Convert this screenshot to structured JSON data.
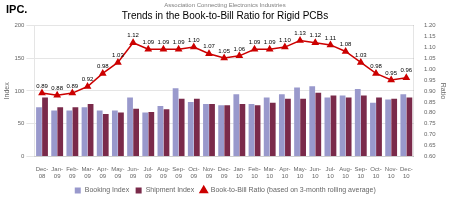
{
  "chart_data": {
    "type": "bar",
    "title": "Trends in the Book-to-Bill Ratio for Rigid PCBs",
    "subtitle": "Association Connecting Electronics Industries",
    "annotations": [
      {
        "text": "IPC."
      }
    ],
    "ylabel": "Index",
    "y2label": "Ratio",
    "categories": [
      "Dec-\n08",
      "Jan-\n09",
      "Feb-\n09",
      "Mar-\n09",
      "Apr-\n09",
      "May-\n09",
      "Jun-\n09",
      "Jul-\n09",
      "Aug-\n09",
      "Sep-\n09",
      "Oct-\n09",
      "Nov-\n09",
      "Dec-\n09",
      "Jan-\n10",
      "Feb-\n10",
      "Mar-\n10",
      "Apr-\n10",
      "May-\n10",
      "Jun-\n10",
      "Jul-\n10",
      "Aug-\n10",
      "Sep-\n10",
      "Oct-\n10",
      "Nov-\n10",
      "Dec-\n10"
    ],
    "series": [
      {
        "name": "Booking Index",
        "type": "bar",
        "color": "#9999cc",
        "values": [
          75,
          70,
          70,
          75,
          70,
          70,
          90,
          67,
          77,
          104,
          83,
          80,
          78,
          95,
          80,
          90,
          95,
          105,
          107,
          90,
          93,
          103,
          82,
          87,
          95
        ]
      },
      {
        "name": "Shipment Index",
        "type": "bar",
        "color": "#7a2a4a",
        "values": [
          90,
          75,
          75,
          80,
          65,
          67,
          73,
          68,
          72,
          88,
          88,
          80,
          78,
          80,
          78,
          82,
          88,
          88,
          97,
          93,
          90,
          93,
          90,
          88,
          90
        ]
      },
      {
        "name": "Book-to-Bill Ratio (based on 3-month rolling average)",
        "type": "line",
        "axis": "y2",
        "color": "#cc0000",
        "marker": "triangle",
        "values": [
          0.89,
          0.88,
          0.89,
          0.92,
          0.98,
          1.03,
          1.12,
          1.09,
          1.09,
          1.09,
          1.1,
          1.07,
          1.05,
          1.06,
          1.09,
          1.09,
          1.1,
          1.13,
          1.12,
          1.11,
          1.08,
          1.03,
          0.98,
          0.95,
          0.96
        ],
        "data_labels": true,
        "value_labels": [
          "0.89",
          "0.88",
          "0.89",
          "0.92",
          "0.98",
          "1.03",
          "1.12",
          "1.09",
          "1.09",
          "1.09",
          "1.10",
          "1.07",
          "1.05",
          "1.06",
          "1.09",
          "1.09",
          "1.10",
          "1.13",
          "1.12",
          "1.11",
          "1.08",
          "1.03",
          "0.98",
          "0.95",
          "0.96"
        ]
      }
    ],
    "ylim": [
      0,
      200
    ],
    "yticks": [
      0,
      50,
      100,
      150,
      200
    ],
    "y2lim": [
      0.6,
      1.2
    ],
    "y2ticks": [
      {
        "value": 0.6,
        "label": "0.60"
      },
      {
        "value": 0.65,
        "label": "0.65"
      },
      {
        "value": 0.7,
        "label": "0.70"
      },
      {
        "value": 0.75,
        "label": "0.75"
      },
      {
        "value": 0.8,
        "label": "0.80"
      },
      {
        "value": 0.85,
        "label": "0.85"
      },
      {
        "value": 0.9,
        "label": "0.90"
      },
      {
        "value": 0.95,
        "label": "0.95"
      },
      {
        "value": 1.0,
        "label": "1.00"
      },
      {
        "value": 1.05,
        "label": "1.05"
      },
      {
        "value": 1.1,
        "label": "1.10"
      },
      {
        "value": 1.15,
        "label": "1.15"
      },
      {
        "value": 1.2,
        "label": "1.20"
      }
    ],
    "grid": true,
    "legend": "bottom"
  }
}
